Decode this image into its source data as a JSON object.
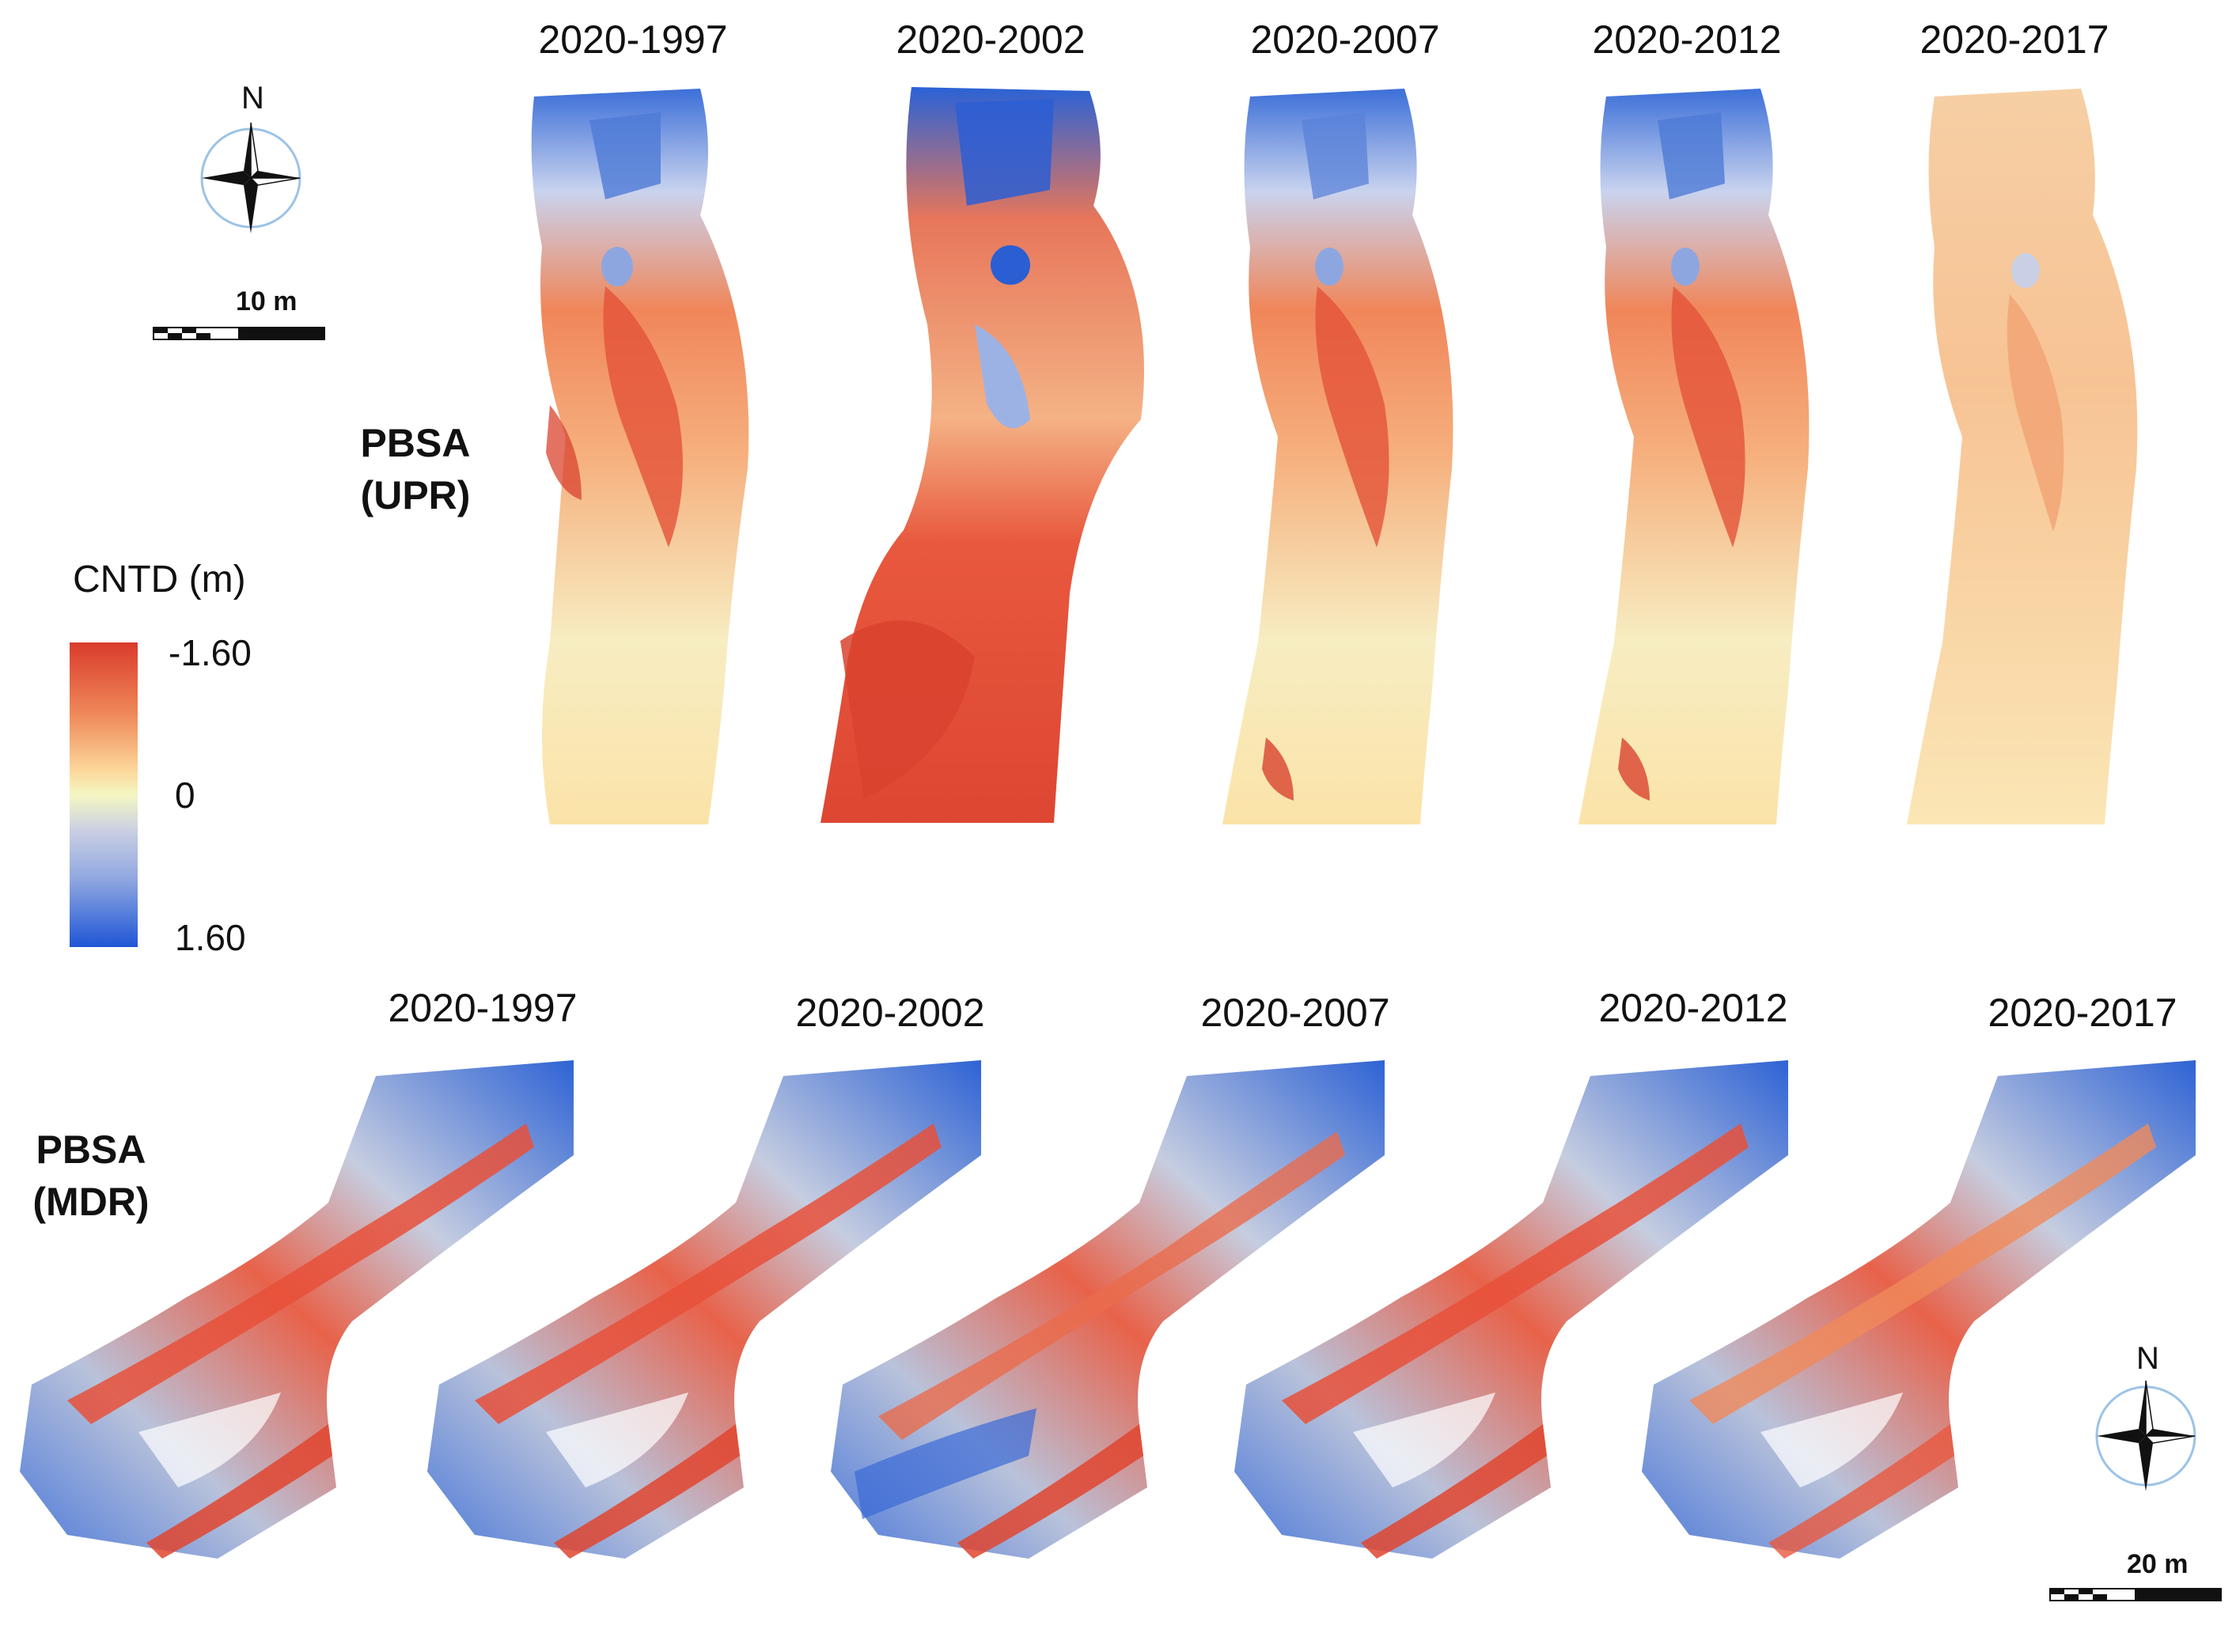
{
  "top_row": {
    "site_label_line1": "PBSA",
    "site_label_line2": "(UPR)",
    "periods": [
      "2020-1997",
      "2020-2002",
      "2020-2007",
      "2020-2012",
      "2020-2017"
    ]
  },
  "bottom_row": {
    "site_label_line1": "PBSA",
    "site_label_line2": "(MDR)",
    "periods": [
      "2020-1997",
      "2020-2002",
      "2020-2007",
      "2020-2012",
      "2020-2017"
    ]
  },
  "legend": {
    "title": "CNTD (m)",
    "max_label": "-1.60",
    "mid_label": "0",
    "min_label": "1.60",
    "colors": {
      "erosion": "#d93b2b",
      "neutral": "#f4f7c2",
      "deposition": "#1f56d6"
    }
  },
  "scalebars": {
    "top": "10 m",
    "bottom": "20 m"
  },
  "north_arrow": {
    "label": "N",
    "icon": "compass-rose-icon"
  }
}
